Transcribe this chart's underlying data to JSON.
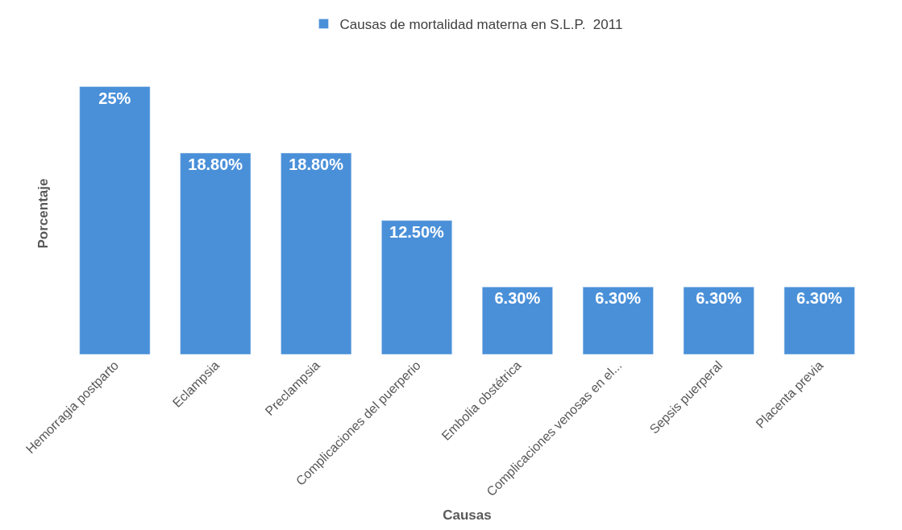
{
  "chart_data": {
    "type": "bar",
    "categories": [
      "Hemorragia postparto",
      "Eclampsia",
      "Preclampsia",
      "Complicaciones del puerperio",
      "Embolia obstétrica",
      "Complicaciones venosas en el...",
      "Sepsis puerperal",
      "Placenta previa"
    ],
    "series": [
      {
        "name": "Causas de mortalidad materna en S.L.P.  2011",
        "color": "#4a90d9",
        "values": [
          25,
          18.8,
          18.8,
          12.5,
          6.3,
          6.3,
          6.3,
          6.3
        ],
        "value_labels": [
          "25%",
          "18.80%",
          "18.80%",
          "12.50%",
          "6.30%",
          "6.30%",
          "6.30%",
          "6.30%"
        ]
      }
    ],
    "xlabel": "Causas",
    "ylabel": "Porcentaje",
    "legend": "top"
  }
}
